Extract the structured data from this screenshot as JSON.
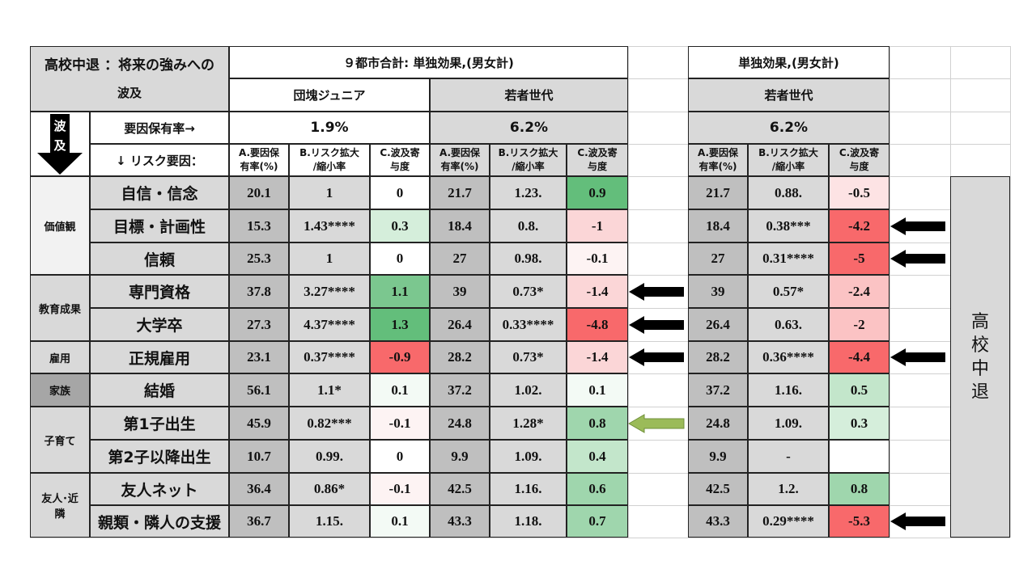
{
  "title_line1": "高校中退 ：将来の強みへの",
  "title_line2": "波及",
  "left_header": "９都市合計: 単独効果,(男女計)",
  "right_header": "単独効果,(男女計)",
  "group_dankai": "団塊ジュニア",
  "group_young": "若者世代",
  "group_young_right": "若者世代",
  "factor_rate_label": "要因保有率→",
  "risk_factor_label": "↓ リスク要因：",
  "wave_char1": "波",
  "wave_char2": "及",
  "rate_dankai": "1.9%",
  "rate_young": "6.2%",
  "rate_young_right": "6.2%",
  "col_a_1": "A.要因保",
  "col_a_2": "有率(%)",
  "col_b_1": "B.リスク拡大",
  "col_b_2": "/縮小率",
  "col_c_1": "C.波及寄",
  "col_c_2": "与度",
  "side_label": [
    "高",
    "校",
    "中",
    "退"
  ],
  "categories": [
    {
      "name": "価値観",
      "rows": 3
    },
    {
      "name": "教育成果",
      "rows": 2
    },
    {
      "name": "雇用",
      "rows": 1
    },
    {
      "name": "家族",
      "rows": 1
    },
    {
      "name": "子育て",
      "rows": 2
    },
    {
      "name": "友人･近\n隣",
      "rows": 2
    }
  ],
  "rows": [
    {
      "item": "自信・信念",
      "d": [
        "20.1",
        "1",
        "0"
      ],
      "y": [
        "21.7",
        "1.23.",
        "0.9"
      ],
      "r": [
        "21.7",
        "0.88.",
        "-0.5"
      ]
    },
    {
      "item": "目標・計画性",
      "d": [
        "15.3",
        "1.43****",
        "0.3"
      ],
      "y": [
        "18.4",
        "0.8.",
        "-1"
      ],
      "r": [
        "18.4",
        "0.38***",
        "-4.2"
      ]
    },
    {
      "item": "信頼",
      "d": [
        "25.3",
        "1",
        "0"
      ],
      "y": [
        "27",
        "0.98.",
        "-0.1"
      ],
      "r": [
        "27",
        "0.31****",
        "-5"
      ]
    },
    {
      "item": "専門資格",
      "d": [
        "37.8",
        "3.27****",
        "1.1"
      ],
      "y": [
        "39",
        "0.73*",
        "-1.4"
      ],
      "r": [
        "39",
        "0.57*",
        "-2.4"
      ]
    },
    {
      "item": "大学卒",
      "d": [
        "27.3",
        "4.37****",
        "1.3"
      ],
      "y": [
        "26.4",
        "0.33****",
        "-4.8"
      ],
      "r": [
        "26.4",
        "0.63.",
        "-2"
      ]
    },
    {
      "item": "正規雇用",
      "d": [
        "23.1",
        "0.37****",
        "-0.9"
      ],
      "y": [
        "28.2",
        "0.73*",
        "-1.4"
      ],
      "r": [
        "28.2",
        "0.36****",
        "-4.4"
      ]
    },
    {
      "item": "結婚",
      "d": [
        "56.1",
        "1.1*",
        "0.1"
      ],
      "y": [
        "37.2",
        "1.02.",
        "0.1"
      ],
      "r": [
        "37.2",
        "1.16.",
        "0.5"
      ]
    },
    {
      "item": "第1子出生",
      "d": [
        "45.9",
        "0.82***",
        "-0.1"
      ],
      "y": [
        "24.8",
        "1.28*",
        "0.8"
      ],
      "r": [
        "24.8",
        "1.09.",
        "0.3"
      ]
    },
    {
      "item": "第2子以降出生",
      "d": [
        "10.7",
        "0.99.",
        "0"
      ],
      "y": [
        "9.9",
        "1.09.",
        "0.4"
      ],
      "r": [
        "9.9",
        "-",
        ""
      ]
    },
    {
      "item": "友人ネット",
      "d": [
        "36.4",
        "0.86*",
        "-0.1"
      ],
      "y": [
        "42.5",
        "1.16.",
        "0.6"
      ],
      "r": [
        "42.5",
        "1.2.",
        "0.8"
      ]
    },
    {
      "item": "親類・隣人の支援",
      "d": [
        "36.7",
        "1.15.",
        "0.1"
      ],
      "y": [
        "43.3",
        "1.18.",
        "0.7"
      ],
      "r": [
        "43.3",
        "0.29****",
        "-5.3"
      ]
    }
  ],
  "colors": {
    "grey_header": "#d9d9d9",
    "grey_dark": "#bfbfbf",
    "grey_mid": "#d0d0d0",
    "cat_light": "#f2f2f2",
    "cat_dark": "#a6a6a6",
    "arrow_black": "#000000",
    "arrow_green": "#9bbb59"
  },
  "arrows_black_rows_mid": [
    3,
    4,
    5
  ],
  "arrows_green_rows_mid": [
    7
  ],
  "arrows_black_rows_right": [
    1,
    2,
    5,
    10
  ]
}
